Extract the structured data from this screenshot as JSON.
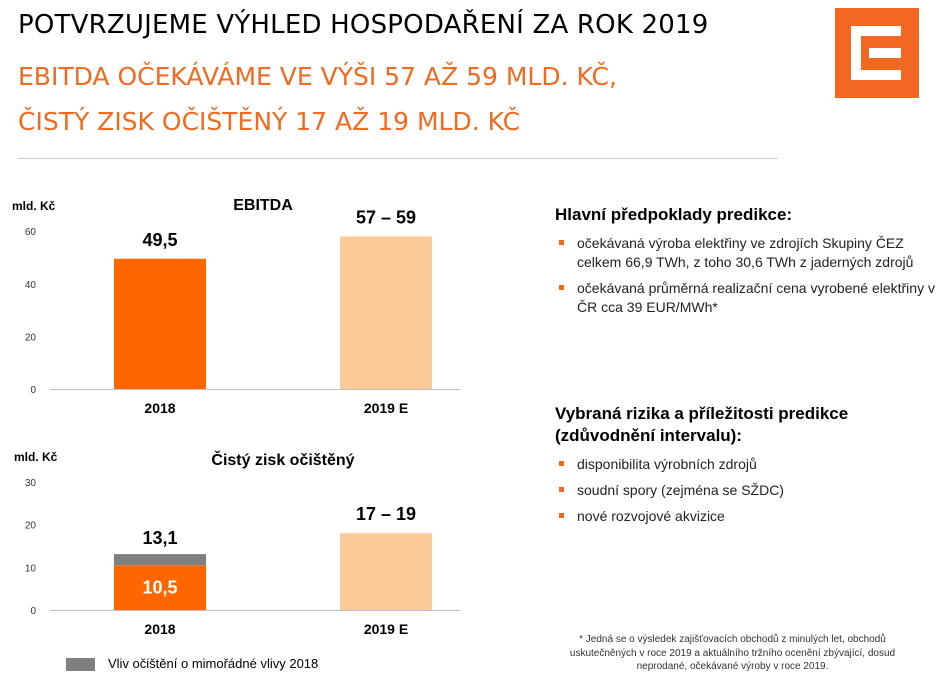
{
  "header": {
    "title": "POTVRZUJEME VÝHLED HOSPODAŘENÍ ZA ROK 2019",
    "subtitle_line1": "EBITDA OČEKÁVÁME VE VÝŠI 57 AŽ 59 MLD. KČ,",
    "subtitle_line2": "ČISTÝ ZISK OČIŠTĚNÝ 17 AŽ 19 MLD. KČ",
    "logo_color": "#f26722"
  },
  "chart_data": [
    {
      "type": "bar",
      "title": "EBITDA",
      "ylabel": "mld. Kč",
      "categories": [
        "2018",
        "2019 E"
      ],
      "values": [
        49.5,
        58
      ],
      "data_labels": [
        "49,5",
        "57 – 59"
      ],
      "colors": [
        "#ff6600",
        "#fcc998"
      ],
      "yticks": [
        "0",
        "20",
        "40",
        "60"
      ],
      "ylim": [
        0,
        65
      ]
    },
    {
      "type": "bar",
      "stacked": true,
      "title": "Čistý zisk očištěný",
      "ylabel": "mld. Kč",
      "categories": [
        "2018",
        "2019 E"
      ],
      "series": [
        {
          "values": [
            10.5,
            18
          ],
          "colors": [
            "#ff6600",
            "#fcc998"
          ]
        },
        {
          "name": "Vliv očištění o mimořádné vlivy 2018",
          "values": [
            2.6,
            0
          ],
          "colors": [
            "#7f7f7f",
            "#7f7f7f"
          ]
        }
      ],
      "data_labels": [
        "10,5",
        "13,1",
        "17 – 19"
      ],
      "yticks": [
        "0",
        "10",
        "20",
        "30"
      ],
      "ylim": [
        0,
        30
      ]
    }
  ],
  "legend": {
    "label": "Vliv očištění o mimořádné vlivy 2018",
    "color": "#7f7f7f"
  },
  "assumptions": {
    "heading": "Hlavní předpoklady predikce:",
    "items": [
      "očekávaná výroba elektřiny ve zdrojích Skupiny ČEZ celkem 66,9 TWh, z toho 30,6 TWh z jaderných zdrojů",
      "očekávaná průměrná realizační cena vyrobené elektřiny v ČR cca 39 EUR/MWh*"
    ]
  },
  "risks": {
    "heading": "Vybraná rizika a příležitosti predikce (zdůvodnění intervalu):",
    "items": [
      "disponibilita výrobních zdrojů",
      "soudní spory (zejména se SŽDC)",
      "nové rozvojové akvizice"
    ]
  },
  "footnote": "* Jedná se o výsledek zajišťovacích obchodů z minulých let, obchodů uskutečněných v roce 2019 a aktuálního tržního ocenění zbývající, dosud neprodané, očekávané výroby v roce 2019."
}
